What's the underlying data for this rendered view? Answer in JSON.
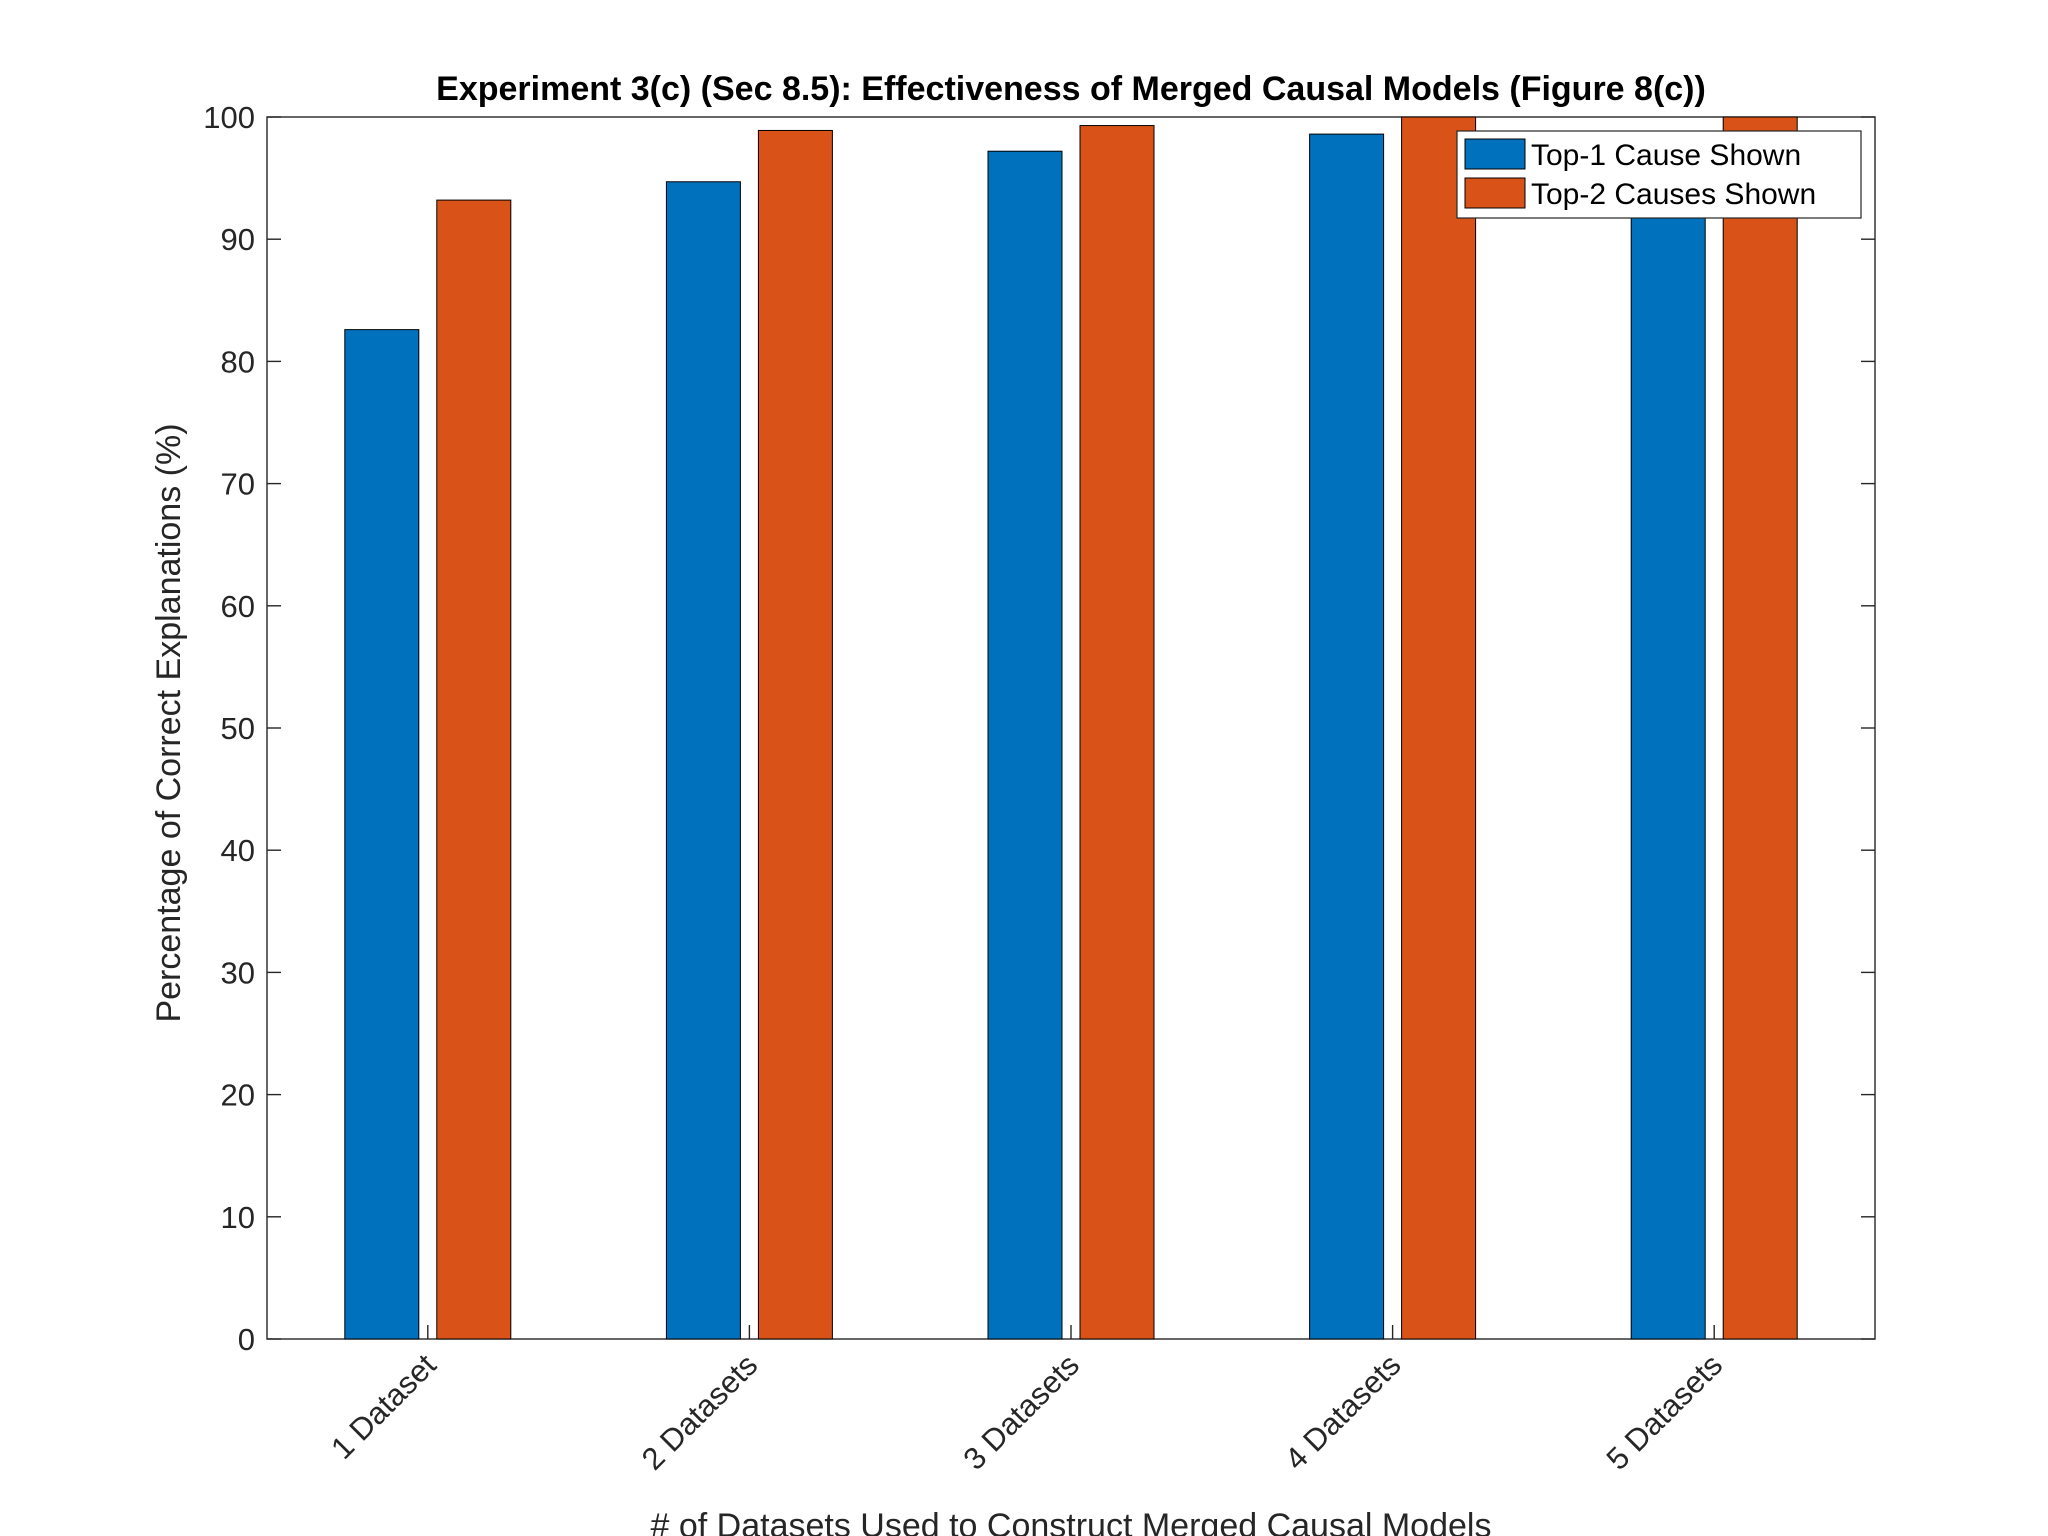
{
  "chart_data": {
    "type": "bar",
    "title": "Experiment 3(c) (Sec 8.5): Effectiveness of Merged Causal Models (Figure 8(c))",
    "xlabel": "# of Datasets Used to Construct Merged Causal Models",
    "ylabel": "Percentage of Correct Explanations (%)",
    "categories": [
      "1 Dataset",
      "2 Datasets",
      "3 Datasets",
      "4 Datasets",
      "5 Datasets"
    ],
    "series": [
      {
        "name": "Top-1 Cause Shown",
        "color": "#0072BD",
        "values": [
          82.6,
          94.7,
          97.2,
          98.6,
          97.6
        ]
      },
      {
        "name": "Top-2 Causes Shown",
        "color": "#D95319",
        "values": [
          93.2,
          98.9,
          99.3,
          100,
          100
        ]
      }
    ],
    "ylim": [
      0,
      100
    ],
    "yticks": [
      0,
      10,
      20,
      30,
      40,
      50,
      60,
      70,
      80,
      90,
      100
    ],
    "legend_position": "top-right",
    "grid": false
  }
}
